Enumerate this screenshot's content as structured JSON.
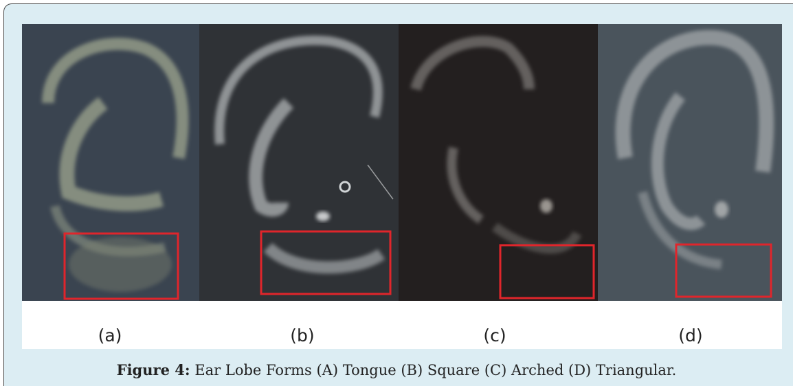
{
  "figure": {
    "panels": [
      {
        "label": "(a)"
      },
      {
        "label": "(b)"
      },
      {
        "label": "(c)"
      },
      {
        "label": "(d)"
      }
    ],
    "caption": {
      "label": "Figure 4:",
      "text": "Ear Lobe Forms (A) Tongue (B) Square (C) Arched (D) Triangular."
    }
  }
}
